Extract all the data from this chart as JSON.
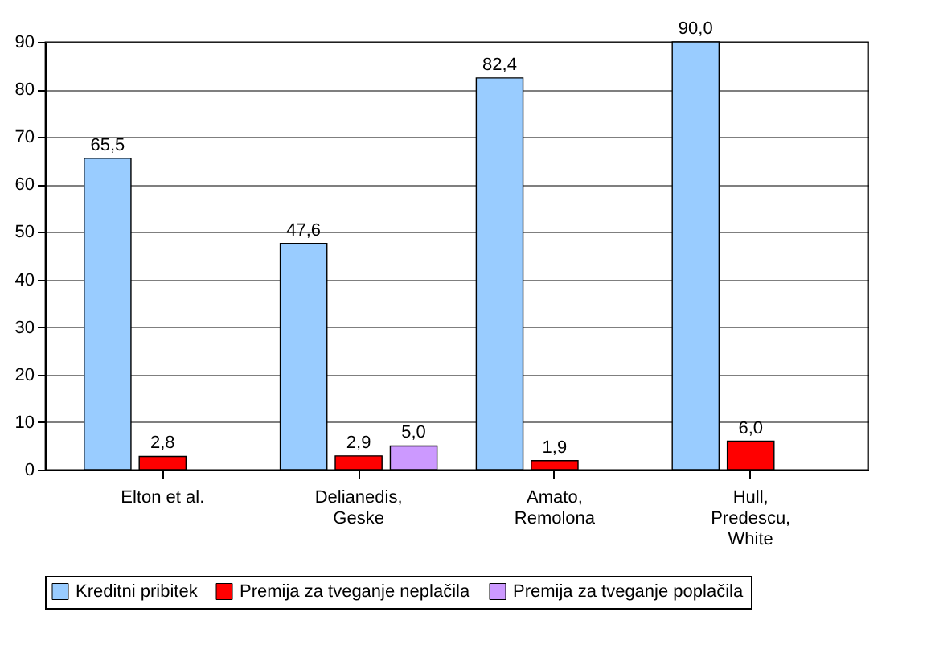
{
  "chart_data": {
    "type": "bar",
    "categories": [
      "Elton et al.",
      "Delianedis, Geske",
      "Amato, Remolona",
      "Hull, Predescu, White"
    ],
    "series": [
      {
        "name": "Kreditni pribitek",
        "color": "#99ccff",
        "values": [
          65.5,
          47.6,
          82.4,
          90.0
        ],
        "value_labels": [
          "65,5",
          "47,6",
          "82,4",
          "90,0"
        ]
      },
      {
        "name": "Premija za tveganje neplačila",
        "color": "#ff0000",
        "values": [
          2.8,
          2.9,
          1.9,
          6.0
        ],
        "value_labels": [
          "2,8",
          "2,9",
          "1,9",
          "6,0"
        ]
      },
      {
        "name": "Premija za tveganje poplačila",
        "color": "#cc99ff",
        "values": [
          null,
          5.0,
          null,
          null
        ],
        "value_labels": [
          null,
          "5,0",
          null,
          null
        ]
      }
    ],
    "ylim": [
      0,
      90
    ],
    "yticks": [
      0,
      10,
      20,
      30,
      40,
      50,
      60,
      70,
      80,
      90
    ],
    "grid": "y",
    "legend": "bottom"
  }
}
